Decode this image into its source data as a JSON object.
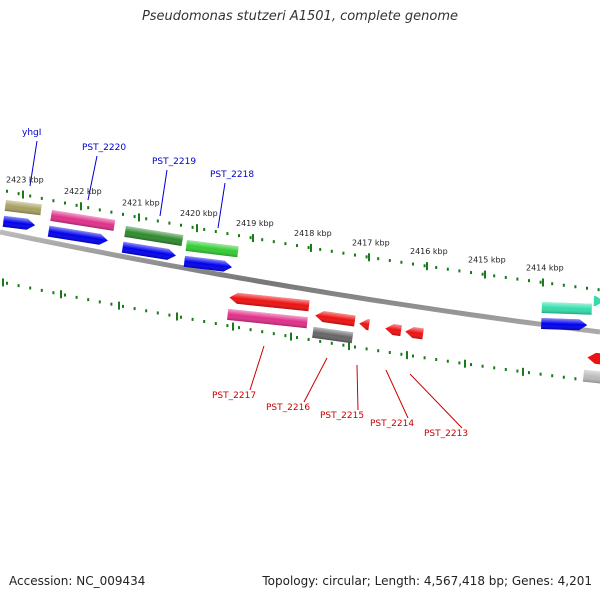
{
  "title": "Pseudomonas stutzeri A1501, complete genome",
  "footer": {
    "accession": "Accession: NC_009434",
    "stats": "Topology: circular; Length: 4,567,418 bp; Genes: 4,201"
  },
  "colors": {
    "forward_label": "#0000cc",
    "reverse_label": "#cc0000",
    "tick": "#1a7a1a",
    "backbone": "#888888"
  },
  "kbp_ticks": [
    "2423 kbp",
    "2422 kbp",
    "2421 kbp",
    "2420 kbp",
    "2419 kbp",
    "2418 kbp",
    "2417 kbp",
    "2416 kbp",
    "2415 kbp",
    "2414 kbp"
  ],
  "forward_genes": [
    {
      "label": "yhgI",
      "color": "#a8a060"
    },
    {
      "label": "PST_2220",
      "color": "#e0308a"
    },
    {
      "label": "PST_2219",
      "color": "#2e8b2e"
    },
    {
      "label": "PST_2218",
      "color": "#33cc33"
    },
    {
      "label": "",
      "color": "#33ddaa"
    }
  ],
  "reverse_genes": [
    {
      "label": "PST_2217",
      "color": "#ee1111"
    },
    {
      "label": "PST_2216",
      "color": "#ee1111"
    },
    {
      "label": "PST_2215",
      "color": "#ee1111"
    },
    {
      "label": "PST_2214",
      "color": "#ee1111"
    },
    {
      "label": "PST_2213",
      "color": "#ee1111"
    }
  ]
}
